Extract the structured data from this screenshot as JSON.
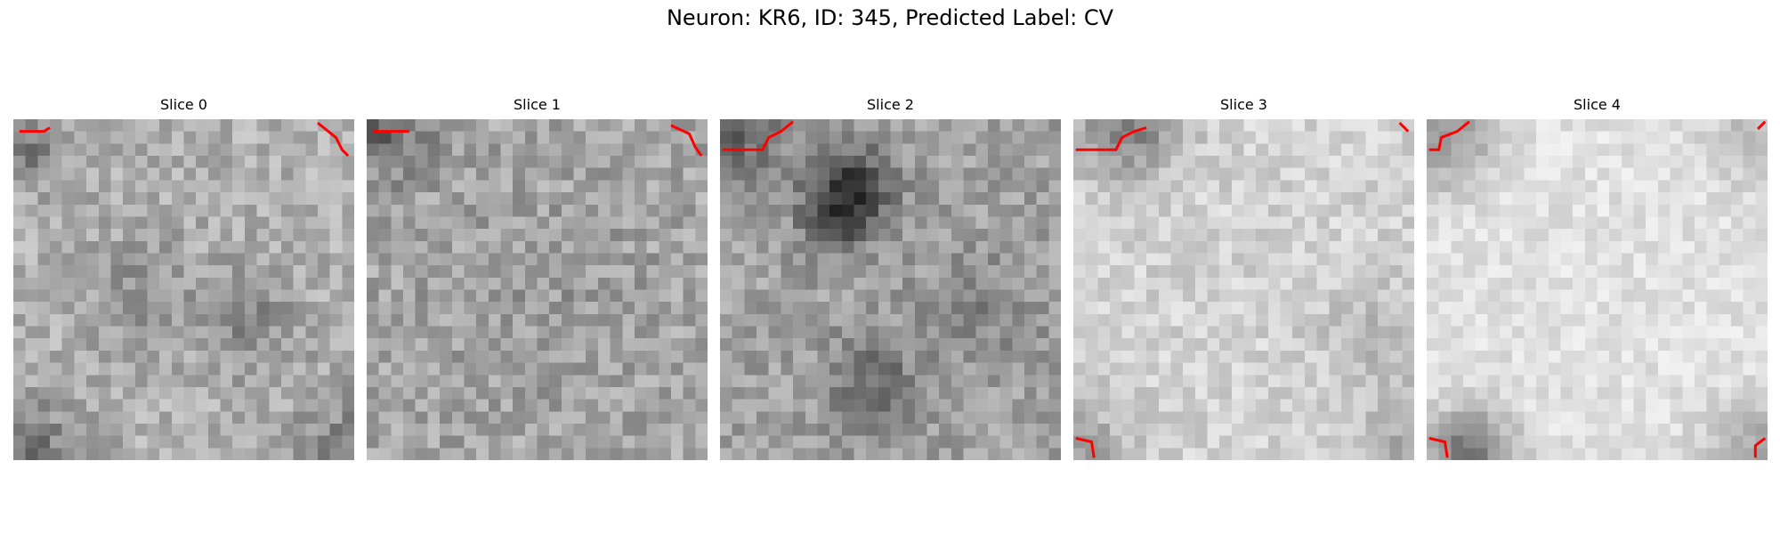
{
  "figure": {
    "title": "Neuron: KR6, ID: 345, Predicted Label: CV",
    "colormap": "gray",
    "contour_color": "#ff0000",
    "panels": [
      {
        "title": "Slice 0"
      },
      {
        "title": "Slice 1"
      },
      {
        "title": "Slice 2"
      },
      {
        "title": "Slice 3"
      },
      {
        "title": "Slice 4"
      }
    ]
  }
}
